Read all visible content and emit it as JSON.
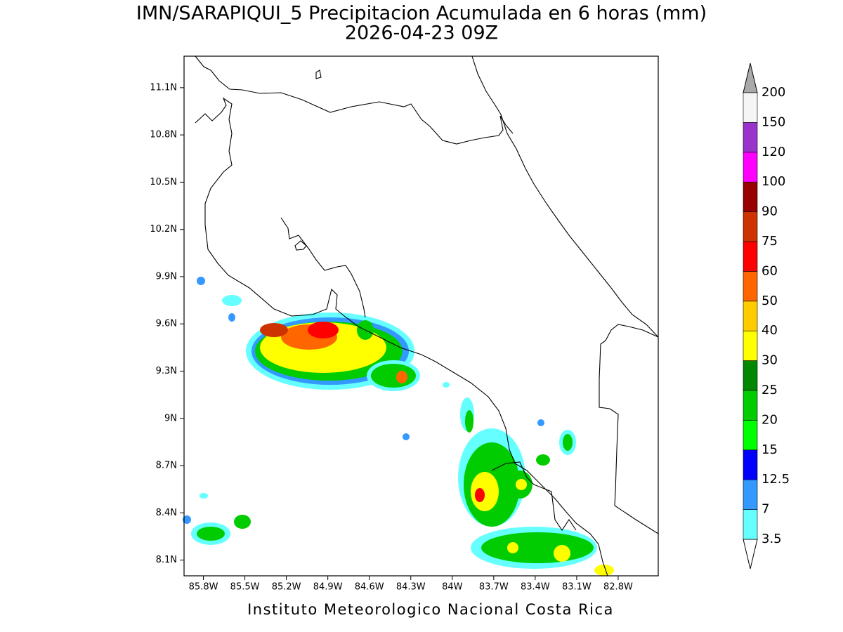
{
  "map": {
    "title": "IMN/SARAPIQUI_5 Precipitacion Acumulada en 6 horas (mm)",
    "subtitle": "2026-04-23 09Z",
    "credit": "Instituto Meteorologico Nacional Costa Rica",
    "xlim": [
      -85.94,
      -82.51
    ],
    "ylim": [
      8.0,
      11.3
    ],
    "xticks": [
      {
        "value": -85.8,
        "label": "85.8W"
      },
      {
        "value": -85.5,
        "label": "85.5W"
      },
      {
        "value": -85.2,
        "label": "85.2W"
      },
      {
        "value": -84.9,
        "label": "84.9W"
      },
      {
        "value": -84.6,
        "label": "84.6W"
      },
      {
        "value": -84.3,
        "label": "84.3W"
      },
      {
        "value": -84,
        "label": "84W"
      },
      {
        "value": -83.7,
        "label": "83.7W"
      },
      {
        "value": -83.4,
        "label": "83.4W"
      },
      {
        "value": -83.1,
        "label": "83.1W"
      },
      {
        "value": -82.8,
        "label": "82.8W"
      }
    ],
    "yticks": [
      {
        "value": 8.1,
        "label": "8.1N"
      },
      {
        "value": 8.4,
        "label": "8.4N"
      },
      {
        "value": 8.7,
        "label": "8.7N"
      },
      {
        "value": 9,
        "label": "9N"
      },
      {
        "value": 9.3,
        "label": "9.3N"
      },
      {
        "value": 9.6,
        "label": "9.6N"
      },
      {
        "value": 9.9,
        "label": "9.9N"
      },
      {
        "value": 10.2,
        "label": "10.2N"
      },
      {
        "value": 10.5,
        "label": "10.5N"
      },
      {
        "value": 10.8,
        "label": "10.8N"
      },
      {
        "value": 11.1,
        "label": "11.1N"
      }
    ],
    "grid": true,
    "colorbar": {
      "levels": [
        3.5,
        7,
        12.5,
        15,
        20,
        25,
        30,
        40,
        50,
        60,
        75,
        90,
        100,
        120,
        150,
        200
      ],
      "colors": [
        "#66ffff",
        "#3399ff",
        "#0000ff",
        "#00ff00",
        "#00cc00",
        "#008800",
        "#ffff00",
        "#ffcc00",
        "#ff6600",
        "#ff0000",
        "#cc3300",
        "#990000",
        "#ff00ff",
        "#9933cc",
        "#f5f5f5"
      ],
      "under_color": "#ffffff",
      "over_color": "#aaaaaa"
    }
  }
}
